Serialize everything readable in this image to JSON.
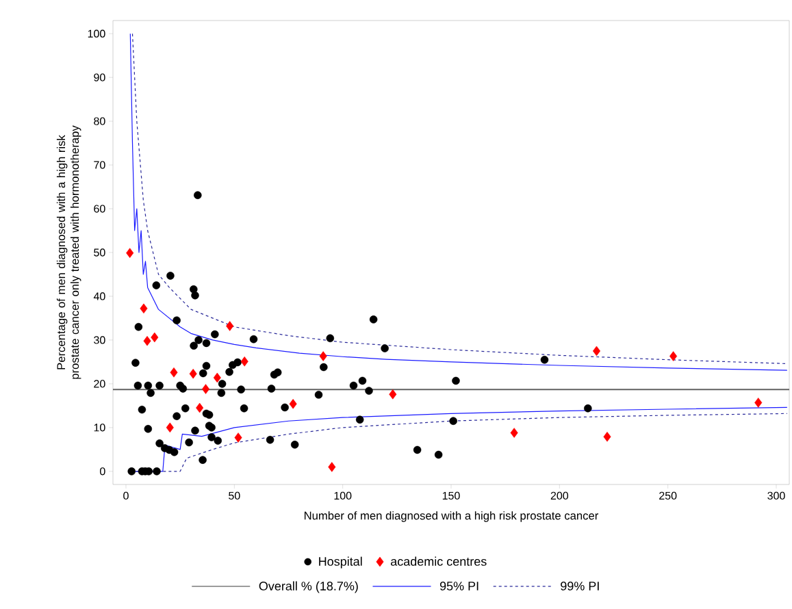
{
  "chart_data": {
    "type": "scatter",
    "xlabel": "Number of men diagnosed with a high risk prostate cancer",
    "ylabel": "Percentage of men diagnosed with a high risk prostate cancer only treated with hormonotherapy",
    "xlim": [
      -6,
      306
    ],
    "ylim": [
      -3,
      103
    ],
    "xticks": [
      0,
      50,
      100,
      150,
      200,
      250,
      300
    ],
    "yticks": [
      0,
      10,
      20,
      30,
      40,
      50,
      60,
      70,
      80,
      90,
      100
    ],
    "grid": false,
    "legend": "bottom",
    "ref_lines": [
      {
        "axis": "y",
        "value": 18.7,
        "label": "Overall % (18.7%)",
        "color": "#606060",
        "line_style": "solid"
      }
    ],
    "series": [
      {
        "name": "Hospital",
        "marker": "circle",
        "color": "#000000",
        "x": [
          33.1,
          20.5,
          14.0,
          31.2,
          31.9,
          5.8,
          23.4,
          41.0,
          58.9,
          33.5,
          31.3,
          37.1,
          4.4,
          37.1,
          35.6,
          47.7,
          49.2,
          51.5,
          5.5,
          10.2,
          15.5,
          11.4,
          25.0,
          26.3,
          44.4,
          44.0,
          53.1,
          67.1,
          68.4,
          70.0,
          7.4,
          54.5,
          27.4,
          23.4,
          37.1,
          38.4,
          10.2,
          31.9,
          38.4,
          39.5,
          39.5,
          42.4,
          29.1,
          66.5,
          15.5,
          17.9,
          20.0,
          22.3,
          35.4,
          2.6,
          7.4,
          8.9,
          10.5,
          14.2,
          114.2,
          94.2,
          119.4,
          91.2,
          105.0,
          109.1,
          112.1,
          88.9,
          152.2,
          73.3,
          107.9,
          151.0,
          77.9,
          134.4,
          144.2,
          193.1,
          213.1
        ],
        "values": [
          63.1,
          44.7,
          42.5,
          41.6,
          40.2,
          33.0,
          34.5,
          31.3,
          30.2,
          30.0,
          28.7,
          29.3,
          24.8,
          24.1,
          22.4,
          22.7,
          24.3,
          24.9,
          19.6,
          19.6,
          19.6,
          17.9,
          19.6,
          18.9,
          20.0,
          17.9,
          18.7,
          18.9,
          22.1,
          22.6,
          14.1,
          14.4,
          14.4,
          12.6,
          13.2,
          12.9,
          9.7,
          9.3,
          10.4,
          10.0,
          7.8,
          7.0,
          6.6,
          7.2,
          6.4,
          5.3,
          4.9,
          4.4,
          2.6,
          0,
          0,
          0,
          0,
          0,
          34.7,
          30.4,
          28.1,
          23.8,
          19.6,
          20.7,
          18.4,
          17.5,
          20.7,
          14.6,
          11.8,
          11.5,
          6.1,
          4.9,
          3.8,
          25.5,
          14.4
        ]
      },
      {
        "name": "academic centres",
        "marker": "diamond",
        "color": "#ff0000",
        "x": [
          1.8,
          8.2,
          9.8,
          13.2,
          47.9,
          54.7,
          22.1,
          31.0,
          42.1,
          36.8,
          34.0,
          20.3,
          51.8,
          91.0,
          123.1,
          77.1,
          95.0,
          217.1,
          252.5,
          291.7,
          179.1,
          222.0
        ],
        "values": [
          49.9,
          37.2,
          29.8,
          30.6,
          33.2,
          25.1,
          22.6,
          22.3,
          21.4,
          18.8,
          14.5,
          10.0,
          7.7,
          26.3,
          17.6,
          15.4,
          1.0,
          27.5,
          26.3,
          15.7,
          8.8,
          7.9
        ]
      },
      {
        "name": "95% PI",
        "type": "line",
        "marker": "none",
        "line_style": "solid",
        "color": "#1a1aff",
        "x": [
          2,
          3,
          4,
          5,
          6,
          7,
          8,
          9,
          10,
          12,
          15,
          20,
          25,
          30,
          40,
          50,
          60,
          80,
          100,
          120,
          150,
          200,
          250,
          305
        ],
        "values": [
          100,
          75,
          55,
          60,
          50,
          55,
          45,
          48,
          42,
          40,
          37,
          35,
          33,
          31.5,
          30,
          29,
          28.2,
          27,
          26.2,
          25.6,
          25,
          24.2,
          23.6,
          23.1
        ]
      },
      {
        "type": "line",
        "marker": "none",
        "line_style": "solid",
        "color": "#1a1aff",
        "x": [
          2,
          17,
          18,
          25,
          26,
          35,
          50,
          75,
          100,
          150,
          200,
          250,
          305
        ],
        "values": [
          0,
          0,
          6,
          5,
          8.5,
          8,
          10,
          11.5,
          12.3,
          13.2,
          13.8,
          14.2,
          14.6
        ]
      },
      {
        "name": "99% PI",
        "type": "line",
        "marker": "none",
        "line_style": "dashed",
        "color": "#2a2a9a",
        "x": [
          3,
          5,
          8,
          10,
          15,
          20,
          30,
          50,
          75,
          100,
          150,
          200,
          250,
          305
        ],
        "values": [
          100,
          80,
          62,
          55,
          45,
          42,
          37,
          33,
          31,
          29.5,
          27.8,
          26.5,
          25.5,
          24.6
        ]
      },
      {
        "type": "line",
        "marker": "none",
        "line_style": "dashed",
        "color": "#2a2a9a",
        "x": [
          2,
          25,
          28,
          40,
          50,
          75,
          100,
          150,
          200,
          250,
          305
        ],
        "values": [
          0,
          0,
          3,
          5,
          6.5,
          8.5,
          10,
          11.5,
          12.3,
          12.8,
          13.2
        ]
      }
    ]
  }
}
